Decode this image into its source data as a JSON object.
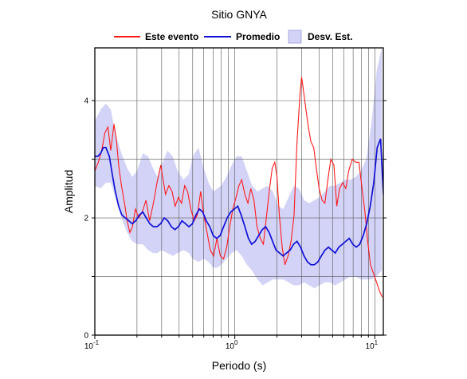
{
  "chart_data": {
    "type": "line",
    "title": "Sitio GNYA",
    "xlabel": "Periodo (s)",
    "ylabel": "Amplitud",
    "x_scale": "log",
    "xlim": [
      0.1,
      11.5
    ],
    "ylim": [
      0,
      4.9
    ],
    "x_ticks": [
      {
        "value": 0.1,
        "base": "10",
        "exp": "-1"
      },
      {
        "value": 1,
        "base": "10",
        "exp": "0"
      },
      {
        "value": 10,
        "base": "10",
        "exp": "1"
      }
    ],
    "y_ticks": [
      0,
      2,
      4
    ],
    "y_tick_labels": [
      "0",
      "2",
      "4"
    ],
    "grid": true,
    "legend": {
      "placement": "top",
      "entries": [
        "Este evento",
        "Promedio",
        "Desv. Est."
      ]
    },
    "colors": {
      "event": "#ff1a1a",
      "mean": "#1010d8",
      "band": "#d3d3f8"
    },
    "series": [
      {
        "name": "Este evento",
        "x": [
          0.1,
          0.106,
          0.112,
          0.118,
          0.124,
          0.13,
          0.137,
          0.143,
          0.148,
          0.155,
          0.163,
          0.17,
          0.178,
          0.186,
          0.195,
          0.206,
          0.218,
          0.232,
          0.246,
          0.262,
          0.278,
          0.296,
          0.305,
          0.32,
          0.338,
          0.356,
          0.375,
          0.395,
          0.416,
          0.438,
          0.46,
          0.485,
          0.512,
          0.54,
          0.57,
          0.6,
          0.633,
          0.668,
          0.705,
          0.745,
          0.788,
          0.83,
          0.875,
          0.92,
          0.968,
          1.02,
          1.07,
          1.12,
          1.18,
          1.24,
          1.3,
          1.37,
          1.44,
          1.52,
          1.6,
          1.68,
          1.76,
          1.85,
          1.93,
          2.0,
          2.08,
          2.18,
          2.28,
          2.4,
          2.52,
          2.65,
          2.78,
          2.92,
          3.0,
          3.08,
          3.2,
          3.35,
          3.5,
          3.66,
          3.82,
          4.0,
          4.2,
          4.4,
          4.62,
          4.85,
          5.1,
          5.35,
          5.6,
          5.9,
          6.2,
          6.5,
          6.9,
          7.3,
          7.7,
          8.1,
          8.5,
          8.9,
          9.3,
          9.8,
          10.3,
          10.8,
          11.3
        ],
        "y": [
          2.8,
          2.95,
          3.15,
          3.45,
          3.55,
          3.15,
          3.6,
          3.3,
          2.9,
          2.55,
          2.25,
          1.95,
          1.75,
          1.85,
          2.15,
          2.0,
          2.1,
          2.3,
          1.95,
          2.25,
          2.6,
          2.9,
          2.7,
          2.4,
          2.55,
          2.45,
          2.2,
          2.35,
          2.25,
          2.55,
          2.45,
          2.15,
          1.95,
          2.05,
          2.45,
          2.05,
          1.75,
          1.45,
          1.35,
          1.65,
          1.35,
          1.3,
          1.5,
          1.85,
          2.15,
          2.35,
          2.55,
          2.65,
          2.4,
          2.25,
          2.5,
          2.3,
          1.85,
          1.65,
          1.55,
          2.0,
          2.45,
          2.85,
          2.95,
          2.7,
          2.05,
          1.5,
          1.2,
          1.35,
          1.6,
          2.05,
          3.3,
          4.1,
          4.4,
          4.2,
          3.9,
          3.55,
          3.3,
          3.2,
          2.85,
          2.5,
          2.3,
          2.25,
          2.65,
          3.0,
          2.9,
          2.2,
          2.5,
          2.6,
          2.5,
          2.8,
          3.0,
          2.95,
          2.95,
          2.5,
          2.1,
          1.6,
          1.2,
          1.05,
          0.9,
          0.75,
          0.65
        ]
      },
      {
        "name": "Promedio",
        "x": [
          0.1,
          0.105,
          0.11,
          0.115,
          0.12,
          0.127,
          0.133,
          0.14,
          0.148,
          0.156,
          0.165,
          0.175,
          0.185,
          0.196,
          0.208,
          0.22,
          0.233,
          0.247,
          0.262,
          0.278,
          0.295,
          0.313,
          0.332,
          0.352,
          0.373,
          0.395,
          0.419,
          0.444,
          0.47,
          0.498,
          0.527,
          0.558,
          0.59,
          0.625,
          0.662,
          0.7,
          0.742,
          0.786,
          0.832,
          0.882,
          0.934,
          0.99,
          1.05,
          1.11,
          1.18,
          1.25,
          1.32,
          1.4,
          1.48,
          1.57,
          1.66,
          1.76,
          1.86,
          1.97,
          2.09,
          2.21,
          2.34,
          2.48,
          2.63,
          2.78,
          2.95,
          3.12,
          3.3,
          3.5,
          3.7,
          3.92,
          4.15,
          4.4,
          4.66,
          4.93,
          5.22,
          5.53,
          5.86,
          6.2,
          6.57,
          6.96,
          7.37,
          7.8,
          8.26,
          8.75,
          9.27,
          9.82,
          10.4,
          11.0,
          11.5
        ],
        "y": [
          3.05,
          3.05,
          3.1,
          3.2,
          3.2,
          3.05,
          2.75,
          2.45,
          2.2,
          2.05,
          2.0,
          1.95,
          1.9,
          1.95,
          2.05,
          2.1,
          2.0,
          1.9,
          1.85,
          1.85,
          1.9,
          2.0,
          1.95,
          1.85,
          1.8,
          1.85,
          1.95,
          1.9,
          1.85,
          1.9,
          2.05,
          2.15,
          2.1,
          1.95,
          1.85,
          1.7,
          1.65,
          1.7,
          1.85,
          2.0,
          2.1,
          2.15,
          2.2,
          2.05,
          1.85,
          1.65,
          1.55,
          1.6,
          1.7,
          1.8,
          1.85,
          1.75,
          1.6,
          1.45,
          1.4,
          1.35,
          1.4,
          1.45,
          1.55,
          1.6,
          1.5,
          1.35,
          1.25,
          1.2,
          1.2,
          1.25,
          1.35,
          1.45,
          1.5,
          1.45,
          1.4,
          1.5,
          1.55,
          1.6,
          1.65,
          1.55,
          1.5,
          1.55,
          1.7,
          1.9,
          2.2,
          2.6,
          3.2,
          3.35,
          2.4
        ]
      },
      {
        "name": "Desv. Est.",
        "x": [
          0.1,
          0.11,
          0.12,
          0.13,
          0.14,
          0.155,
          0.17,
          0.185,
          0.2,
          0.22,
          0.24,
          0.26,
          0.28,
          0.3,
          0.33,
          0.36,
          0.39,
          0.43,
          0.47,
          0.5,
          0.55,
          0.6,
          0.65,
          0.7,
          0.75,
          0.8,
          0.87,
          0.95,
          1.03,
          1.12,
          1.22,
          1.33,
          1.45,
          1.58,
          1.72,
          1.87,
          2.04,
          2.22,
          2.42,
          2.64,
          2.87,
          3.13,
          3.4,
          3.7,
          4.03,
          4.39,
          4.78,
          5.2,
          5.67,
          6.17,
          6.72,
          7.32,
          7.97,
          8.68,
          9.45,
          10.3,
          11.2
        ],
        "upper": [
          3.65,
          3.85,
          3.95,
          3.85,
          3.45,
          3.1,
          2.85,
          2.7,
          2.8,
          3.1,
          3.05,
          2.85,
          2.7,
          2.9,
          3.15,
          3.05,
          2.8,
          2.65,
          2.75,
          3.05,
          3.2,
          2.85,
          2.6,
          2.45,
          2.5,
          2.55,
          2.7,
          2.9,
          3.05,
          3.05,
          2.8,
          2.55,
          2.45,
          2.5,
          2.55,
          2.45,
          2.2,
          2.15,
          2.35,
          2.55,
          2.5,
          2.3,
          2.25,
          2.3,
          2.35,
          2.45,
          2.55,
          2.55,
          2.6,
          2.65,
          2.65,
          2.7,
          2.8,
          3.0,
          3.6,
          4.5,
          4.9
        ],
        "lower": [
          2.55,
          2.5,
          2.6,
          2.6,
          2.35,
          2.0,
          1.75,
          1.6,
          1.55,
          1.55,
          1.45,
          1.4,
          1.4,
          1.45,
          1.4,
          1.35,
          1.4,
          1.45,
          1.4,
          1.3,
          1.25,
          1.3,
          1.25,
          1.15,
          1.15,
          1.2,
          1.3,
          1.4,
          1.45,
          1.35,
          1.2,
          1.1,
          0.95,
          0.85,
          0.9,
          0.95,
          0.95,
          0.95,
          0.9,
          0.85,
          0.85,
          0.9,
          0.85,
          0.8,
          0.85,
          0.9,
          0.9,
          0.85,
          0.9,
          0.95,
          1.0,
          1.0,
          0.95,
          0.95,
          0.95,
          1.0,
          1.1
        ]
      }
    ]
  }
}
